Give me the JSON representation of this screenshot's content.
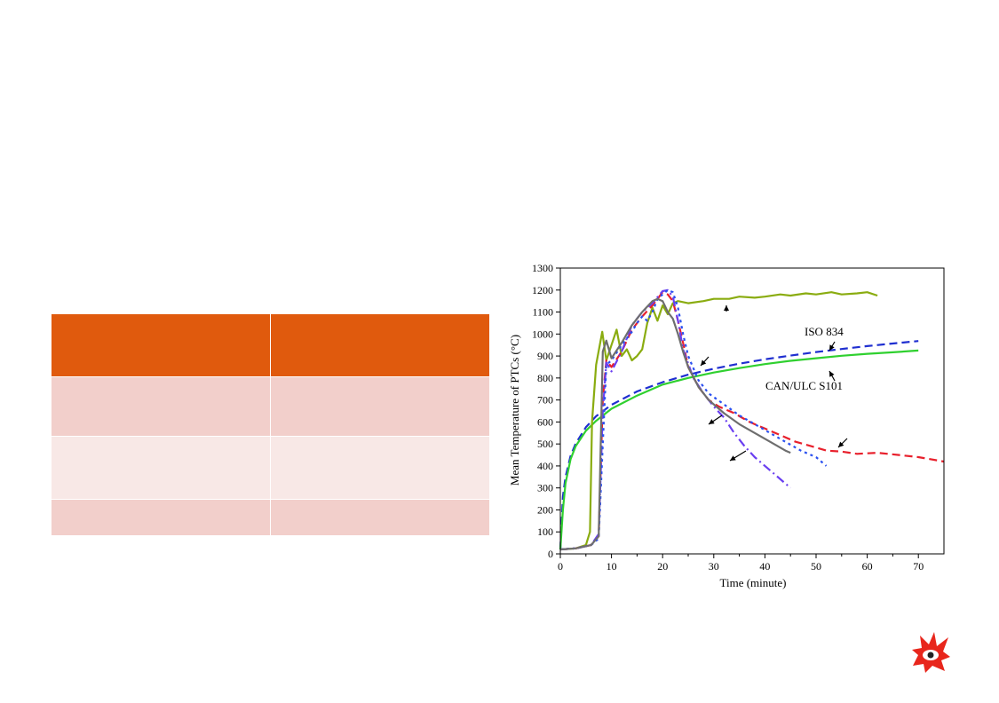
{
  "table": {
    "rows": [
      [
        "",
        ""
      ],
      [
        "",
        ""
      ],
      [
        "",
        ""
      ],
      [
        "",
        ""
      ]
    ],
    "header_color": "#e05a0d",
    "row_colors": [
      "#f2cfcb",
      "#f8e8e6",
      "#f2cfcb"
    ]
  },
  "logo": {
    "icon": "flame-eye-icon",
    "color": "#e8261c"
  },
  "chart_data": {
    "type": "line",
    "xlabel": "Time (minute)",
    "ylabel": "Mean Temperature of PTCs (°C)",
    "xlim": [
      0,
      75
    ],
    "ylim": [
      0,
      1300
    ],
    "xticks": [
      0,
      10,
      20,
      30,
      40,
      50,
      60,
      70
    ],
    "yticks": [
      0,
      100,
      200,
      300,
      400,
      500,
      600,
      700,
      800,
      900,
      1000,
      1100,
      1200,
      1300
    ],
    "grid": false,
    "annotations": [
      "ISO 834",
      "CAN/ULC S101"
    ],
    "series": [
      {
        "name": "ISO 834",
        "color": "#1f2fd0",
        "style": "dashed",
        "x": [
          0,
          0.5,
          1,
          2,
          3,
          5,
          7,
          10,
          15,
          20,
          25,
          30,
          35,
          40,
          45,
          50,
          55,
          60,
          65,
          70
        ],
        "y": [
          20,
          261,
          349,
          445,
          502,
          576,
          626,
          678,
          739,
          781,
          815,
          842,
          865,
          885,
          902,
          918,
          932,
          945,
          957,
          968
        ]
      },
      {
        "name": "CAN/ULC S101",
        "color": "#2fd02f",
        "style": "solid",
        "x": [
          0,
          0.5,
          1,
          2,
          3,
          5,
          7,
          10,
          15,
          20,
          25,
          30,
          35,
          40,
          45,
          50,
          55,
          60,
          65,
          70
        ],
        "y": [
          20,
          200,
          320,
          430,
          490,
          560,
          605,
          660,
          720,
          770,
          800,
          825,
          845,
          863,
          878,
          890,
          901,
          910,
          917,
          925
        ]
      },
      {
        "color": "#8aac10",
        "style": "solid",
        "x": [
          0,
          3,
          5,
          5.8,
          6.2,
          7,
          8.2,
          9,
          10,
          11,
          12,
          13,
          14,
          15,
          16,
          17,
          18,
          19,
          20,
          21,
          22,
          23,
          25,
          28,
          30,
          33,
          35,
          38,
          40,
          43,
          45,
          48,
          50,
          53,
          55,
          58,
          60,
          62
        ],
        "y": [
          20,
          25,
          40,
          100,
          600,
          860,
          1010,
          880,
          950,
          1020,
          900,
          930,
          880,
          900,
          930,
          1050,
          1120,
          1060,
          1130,
          1090,
          1140,
          1150,
          1140,
          1150,
          1160,
          1160,
          1170,
          1165,
          1170,
          1180,
          1175,
          1185,
          1180,
          1190,
          1180,
          1185,
          1190,
          1175
        ]
      },
      {
        "color": "#e8202c",
        "style": "dashed",
        "x": [
          0,
          3,
          6,
          7.5,
          8.3,
          9,
          10,
          12,
          14,
          16,
          18,
          20,
          21,
          22,
          23,
          24,
          25,
          27,
          29,
          31,
          34,
          37,
          40,
          43,
          46,
          49,
          52,
          55,
          58,
          62,
          66,
          70,
          75
        ],
        "y": [
          20,
          25,
          40,
          80,
          700,
          880,
          850,
          920,
          1020,
          1080,
          1130,
          1190,
          1180,
          1150,
          1060,
          960,
          850,
          760,
          700,
          670,
          640,
          600,
          570,
          540,
          510,
          490,
          470,
          465,
          455,
          460,
          450,
          440,
          420
        ]
      },
      {
        "color": "#6a3ff0",
        "style": "dashdot",
        "x": [
          0,
          3,
          6,
          7.5,
          8.3,
          9,
          10,
          12,
          14,
          16,
          18,
          20,
          21,
          22,
          23,
          24,
          26,
          28,
          30,
          32,
          34,
          36,
          38,
          40,
          42,
          44,
          45
        ],
        "y": [
          20,
          25,
          40,
          90,
          650,
          870,
          830,
          920,
          1040,
          1100,
          1140,
          1195,
          1200,
          1170,
          1060,
          930,
          800,
          730,
          670,
          620,
          550,
          490,
          440,
          400,
          360,
          320,
          300
        ]
      },
      {
        "color": "#2a50f0",
        "style": "dotted",
        "x": [
          0,
          3,
          6,
          7.5,
          8.3,
          9,
          10,
          12,
          14,
          15,
          16,
          17,
          18,
          19,
          20,
          21,
          22,
          23,
          24,
          25,
          27,
          29,
          32,
          35,
          38,
          41,
          44,
          47,
          50,
          52
        ],
        "y": [
          20,
          25,
          40,
          70,
          500,
          860,
          880,
          950,
          1010,
          1050,
          1080,
          1060,
          1100,
          1160,
          1180,
          1200,
          1190,
          1120,
          1000,
          900,
          790,
          730,
          680,
          630,
          590,
          550,
          510,
          470,
          440,
          400
        ]
      },
      {
        "color": "#6e6e6e",
        "style": "solid",
        "x": [
          0,
          3,
          6,
          7.5,
          8.3,
          9,
          10,
          12,
          14,
          16,
          18,
          19,
          20,
          21,
          22,
          23,
          24,
          25,
          27,
          29,
          32,
          35,
          38,
          41,
          44,
          45
        ],
        "y": [
          20,
          25,
          40,
          80,
          920,
          970,
          890,
          960,
          1040,
          1100,
          1150,
          1160,
          1150,
          1100,
          1070,
          1000,
          920,
          850,
          760,
          700,
          640,
          590,
          550,
          510,
          470,
          460
        ]
      }
    ]
  }
}
